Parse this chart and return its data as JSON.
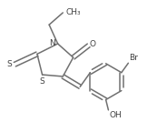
{
  "background_color": "#ffffff",
  "line_color": "#707070",
  "text_color": "#404040",
  "line_width": 1.1,
  "font_size": 6.5,
  "fig_width": 1.84,
  "fig_height": 1.34,
  "dpi": 100,
  "xlim": [
    -0.5,
    8.5
  ],
  "ylim": [
    -0.5,
    6.5
  ]
}
